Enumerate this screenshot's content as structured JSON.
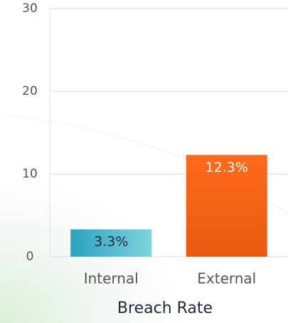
{
  "chart_data": {
    "type": "bar",
    "x_label": "Breach Rate",
    "categories": [
      "Internal",
      "External"
    ],
    "values": [
      3.3,
      12.3
    ],
    "value_labels": [
      "3.3%",
      "12.3%"
    ],
    "colors": [
      "#3fb8cc",
      "#f26518"
    ],
    "value_label_colors": [
      "#1c2a3a",
      "#ffffff"
    ],
    "ylim": [
      0,
      30
    ],
    "yticks": [
      0,
      10,
      20,
      30
    ],
    "grid": true
  }
}
